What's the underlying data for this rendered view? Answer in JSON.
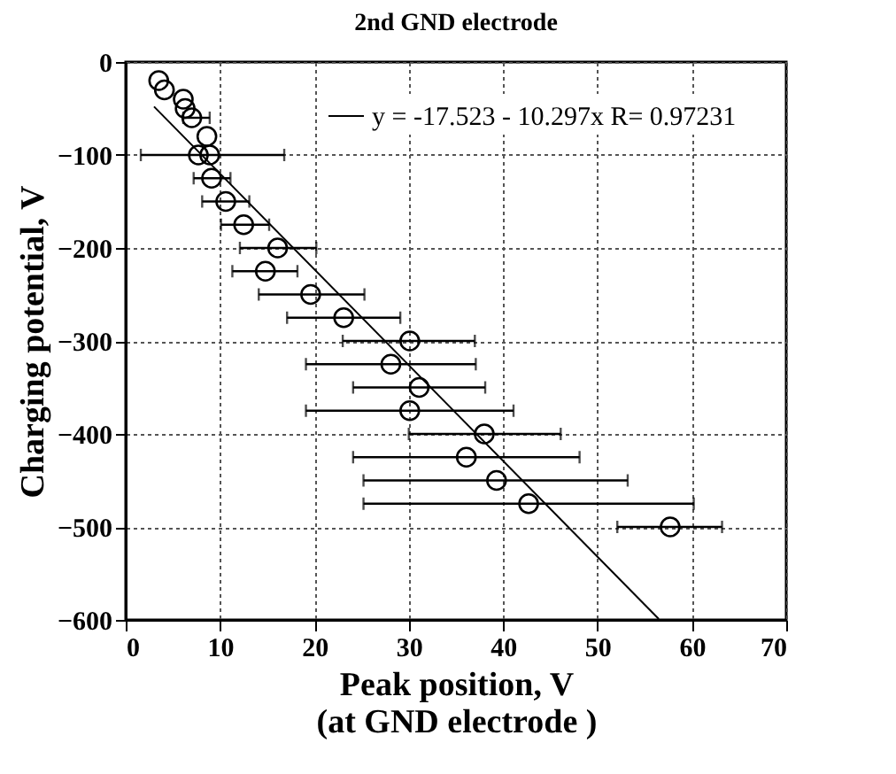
{
  "chart_data": {
    "type": "scatter",
    "title": "2nd GND electrode",
    "xlabel": "Peak position, V\n(at GND electrode )",
    "ylabel": "Charging potential, V",
    "xlim": [
      0,
      70
    ],
    "ylim": [
      -600,
      0
    ],
    "xticks": [
      0,
      10,
      20,
      30,
      40,
      50,
      60,
      70
    ],
    "yticks": [
      -600,
      -500,
      -400,
      -300,
      -200,
      -100,
      0
    ],
    "grid": true,
    "legend": "top right",
    "marker": "circle",
    "series": [
      {
        "color": "#000000",
        "x": [
          3.5,
          4.1,
          6.1,
          6.3,
          7.0,
          8.6,
          7.7,
          8.9,
          9.1,
          10.6,
          12.5,
          16.1,
          14.8,
          19.6,
          23.1,
          30.1,
          28.1,
          31.1,
          30.1,
          38.0,
          36.1,
          39.3,
          42.7,
          57.7
        ],
        "values": [
          -20,
          -30,
          -40,
          -50,
          -60,
          -80,
          -100,
          -100,
          -125,
          -150,
          -175,
          -200,
          -225,
          -250,
          -275,
          -300,
          -325,
          -350,
          -375,
          -400,
          -425,
          -450,
          -475,
          -500
        ],
        "xerrors": [
          null,
          null,
          null,
          null,
          [
            6.1,
            8.9
          ],
          null,
          [
            1.6,
            16.8
          ],
          null,
          [
            7.2,
            11.1
          ],
          [
            8.1,
            13.1
          ],
          [
            10.1,
            15.2
          ],
          [
            12.1,
            20.2
          ],
          [
            11.3,
            18.2
          ],
          [
            14.1,
            25.3
          ],
          [
            17.1,
            29.1
          ],
          [
            23.0,
            37.0
          ],
          [
            19.1,
            37.1
          ],
          [
            24.1,
            38.1
          ],
          [
            19.1,
            41.1
          ],
          [
            30.0,
            46.1
          ],
          [
            24.1,
            48.1
          ],
          [
            25.2,
            53.2
          ],
          [
            25.2,
            60.2
          ],
          [
            52.1,
            63.2
          ]
        ]
      },
      {
        "type": "line",
        "marker": "none",
        "name": "y = -17.523 - 10.297x   R= 0.97231",
        "color": "#000000",
        "x": [
          3,
          56.5
        ],
        "values": [
          -48,
          -599
        ]
      }
    ]
  }
}
